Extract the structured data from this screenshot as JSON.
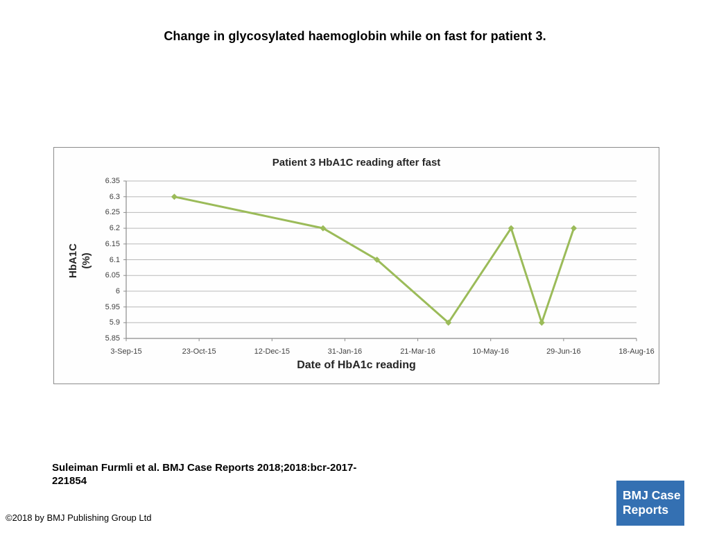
{
  "page": {
    "title": "Change in glycosylated haemoglobin while on fast for patient 3.",
    "citation": "Suleiman Furmli et al. BMJ Case Reports 2018;2018:bcr-2017-221854",
    "copyright": "©2018 by BMJ Publishing Group Ltd",
    "logo": {
      "line1": "BMJ Case",
      "line2": "Reports",
      "bg_color": "#3470b2",
      "text_color": "#ffffff"
    }
  },
  "chart_data": {
    "type": "line",
    "title": "Patient 3 HbA1C reading after fast",
    "xlabel": "Date of HbA1c reading",
    "ylabel": "HbA1C (%)",
    "ylabel_lines": [
      "HbA1C",
      "(%)"
    ],
    "x_tick_labels": [
      "3-Sep-15",
      "23-Oct-15",
      "12-Dec-15",
      "31-Jan-16",
      "21-Mar-16",
      "10-May-16",
      "29-Jun-16",
      "18-Aug-16"
    ],
    "x_tick_days": [
      0,
      50,
      100,
      150,
      200,
      250,
      300,
      350
    ],
    "xlim_days": [
      0,
      350
    ],
    "y_ticks": [
      6.35,
      6.3,
      6.25,
      6.2,
      6.15,
      6.1,
      6.05,
      6,
      5.95,
      5.9,
      5.85
    ],
    "ylim": [
      5.85,
      6.35
    ],
    "grid": true,
    "legend": "none",
    "marker": "diamond",
    "line_color": "#9bbb59",
    "gridline_color": "#b8b8b8",
    "axis_color": "#8c8c8c",
    "points": [
      {
        "day": 33,
        "approx_date": "6-Oct-15",
        "value": 6.3
      },
      {
        "day": 135,
        "approx_date": "16-Jan-16",
        "value": 6.2
      },
      {
        "day": 172,
        "approx_date": "22-Feb-16",
        "value": 6.1
      },
      {
        "day": 221,
        "approx_date": "11-Apr-16",
        "value": 5.9
      },
      {
        "day": 264,
        "approx_date": "24-May-16",
        "value": 6.2
      },
      {
        "day": 285,
        "approx_date": "14-Jun-16",
        "value": 5.9
      },
      {
        "day": 307,
        "approx_date": "6-Jul-16",
        "value": 6.2
      }
    ]
  }
}
